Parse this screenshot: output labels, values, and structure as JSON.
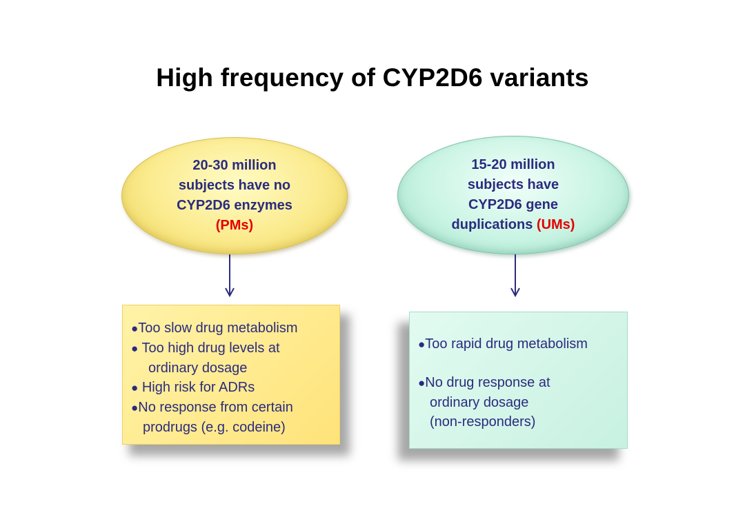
{
  "title": "High frequency of CYP2D6 variants",
  "left_ellipse": {
    "line1": "20-30 million",
    "line2": "subjects have no",
    "line3": "CYP2D6 enzymes",
    "highlight": "(PMs)"
  },
  "right_ellipse": {
    "line1": "15-20 million",
    "line2": "subjects have",
    "line3": "CYP2D6 gene",
    "line4": "duplications",
    "highlight": "(UMs)"
  },
  "left_box": {
    "bullet1": "Too slow drug metabolism",
    "bullet2a": "Too high drug levels at",
    "bullet2b": "ordinary dosage",
    "bullet3": "High risk for ADRs",
    "bullet4a": "No response from certain",
    "bullet4b": "prodrugs (e.g. codeine)"
  },
  "right_box": {
    "bullet1": "Too rapid drug metabolism",
    "bullet2a": "No drug response at",
    "bullet2b": "ordinary dosage",
    "bullet2c": "(non-responders)"
  },
  "colors": {
    "text_navy": "#2b2b7f",
    "highlight_red": "#e30000",
    "left_fill": "#fbeb8e",
    "right_fill": "#c9f4e4"
  },
  "icons": {
    "bullet": "●",
    "arrow": "arrow-down-icon"
  }
}
